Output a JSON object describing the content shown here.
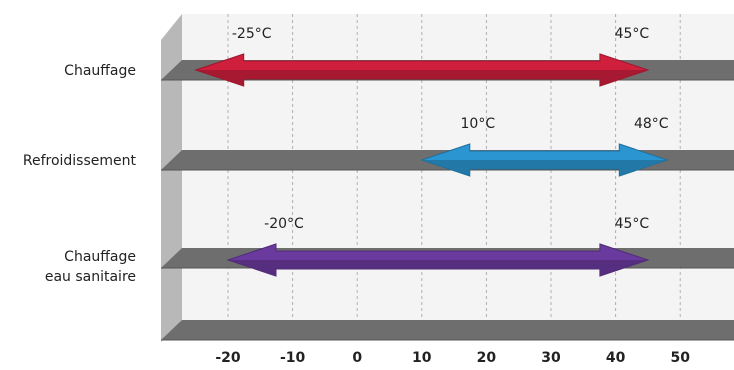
{
  "chart_data": {
    "type": "bar",
    "orientation": "horizontal-range",
    "categories": [
      "Chauffage",
      "Refroidissement",
      "Chauffage\neau sanitaire"
    ],
    "series": [
      {
        "category": "Chauffage",
        "min": -25,
        "max": 45,
        "min_label": "-25°C",
        "max_label": "45°C",
        "color": "#d01f3c"
      },
      {
        "category": "Refroidissement",
        "min": 10,
        "max": 48,
        "min_label": "10°C",
        "max_label": "48°C",
        "color": "#2a95d0"
      },
      {
        "category": "Chauffage\neau sanitaire",
        "min": -20,
        "max": 45,
        "min_label": "-20°C",
        "max_label": "45°C",
        "color": "#6a3a9e"
      }
    ],
    "x_ticks": [
      -20,
      -10,
      0,
      10,
      20,
      30,
      40,
      50
    ],
    "x_tick_labels": [
      "-20",
      "-10",
      "0",
      "10",
      "20",
      "30",
      "40",
      "50"
    ],
    "xlim": [
      -30,
      55
    ],
    "title": "",
    "xlabel": "",
    "ylabel": "",
    "grid": true
  }
}
